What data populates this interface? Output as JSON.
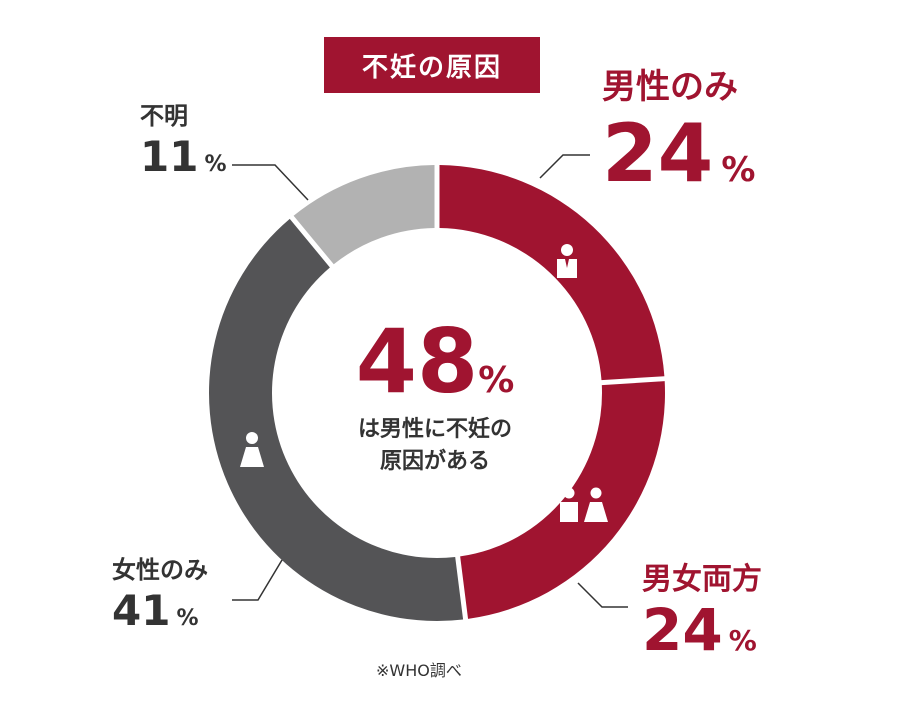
{
  "title": "不妊の原因",
  "colors": {
    "accent": "#a01430",
    "dark_gray": "#545456",
    "light_gray": "#b2b2b2",
    "text": "#333333"
  },
  "percent_sign": "%",
  "center": {
    "value": "48",
    "line1": "は男性に不妊の",
    "line2": "原因がある"
  },
  "source": "※WHO調べ",
  "icons": [
    "male-person-icon",
    "couple-icon",
    "female-person-icon"
  ],
  "chart_data": {
    "type": "pie",
    "title": "不妊の原因",
    "categories": [
      "男性のみ",
      "男女両方",
      "女性のみ",
      "不明"
    ],
    "values": [
      24,
      24,
      41,
      11
    ],
    "unit": "%"
  }
}
